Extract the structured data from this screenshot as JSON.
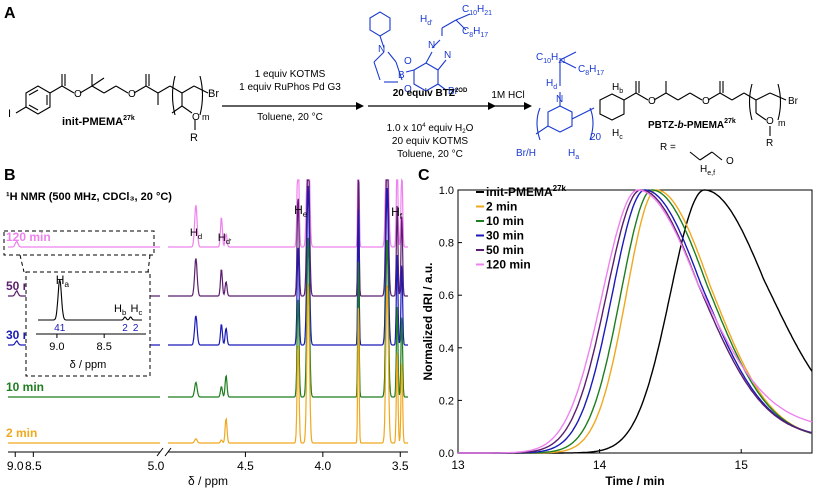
{
  "panels": {
    "A": "A",
    "B": "B",
    "C": "C"
  },
  "scheme": {
    "reactant_label": "init-PMEMA",
    "reactant_sup": "27k",
    "reactant_sub_m": "m",
    "reactant_R": "R",
    "reactant_Br": "Br",
    "reactant_I": "I",
    "step1_line1": "1 equiv KOTMS",
    "step1_line2": "1 equiv RuPhos Pd G3",
    "step1_line3": "Toluene, 20 °C",
    "step2_line1": "20 equiv BTZ",
    "step2_sup": "2OD",
    "step2_line2": "1.0 x 10",
    "step2_line2_sup": "4",
    "step2_line2_end": " equiv H",
    "step2_line2_sub": "2",
    "step2_line2_tail": "O",
    "step2_line3": "20 equiv KOTMS",
    "step2_line4": "Toluene, 20 °C",
    "step3": "1M HCl",
    "bpin_B": "B",
    "bpin_O": "O",
    "bpin_N": "N",
    "monomer_Br": "Br",
    "monomer_Hd": "H",
    "monomer_Hd_sub": "d'",
    "monomer_C10": "C",
    "monomer_C10_sub": "10",
    "monomer_C10_tail": "H",
    "monomer_C10_tail_sub": "21",
    "monomer_C8": "C",
    "monomer_C8_sub": "8",
    "monomer_C8_tail": "H",
    "monomer_C8_tail_sub": "17",
    "product_label": "PBTZ-",
    "product_b": "b",
    "product_tail": "-PMEMA",
    "product_sup": "27k",
    "product_R_eq": "R =",
    "product_Hef": "H",
    "product_Hef_sub": "e,f",
    "product_20": "20",
    "product_BrH": "Br/H",
    "product_Ha": "H",
    "product_Ha_sub": "a",
    "product_Hb": "H",
    "product_Hb_sub": "b",
    "product_Hc": "H",
    "product_Hc_sub": "c",
    "product_Hd": "H",
    "product_Hd_sub": "d",
    "product_m": "m",
    "product_R": "R",
    "product_Br": "Br",
    "product_O": "O"
  },
  "nmr": {
    "title": "¹H NMR (500 MHz, CDCl₃, 20 °C)",
    "xlabel": "δ / ppm",
    "ticks_left": [
      "9.0",
      "8.5",
      "5.0"
    ],
    "ticks_right": [
      "4.5",
      "4.0",
      "3.5"
    ],
    "traces": [
      {
        "label": "120 min",
        "color": "#ee82ee"
      },
      {
        "label": "50 min",
        "color": "#5b1e6e"
      },
      {
        "label": "30 min",
        "color": "#1a1ab8"
      },
      {
        "label": "10 min",
        "color": "#1e7d1e"
      },
      {
        "label": "2 min",
        "color": "#f0a81e"
      }
    ],
    "peaks": {
      "Hd": "H",
      "Hd_sub": "d",
      "Hdp": "H",
      "Hdp_sub": "d'",
      "He": "H",
      "He_sub": "e",
      "Hf": "H",
      "Hf_sub": "f"
    },
    "inset": {
      "Ha": "H",
      "Ha_sub": "a",
      "Hb": "H",
      "Hb_sub": "b",
      "Hc": "H",
      "Hc_sub": "c",
      "int_a": "41",
      "int_b": "2",
      "int_c": "2",
      "ticks": [
        "9.0",
        "8.5"
      ],
      "xlabel": "δ / ppm"
    }
  },
  "chart_data": {
    "type": "line",
    "xlabel": "Time / min",
    "ylabel": "Normalized dRI / a.u.",
    "xlim": [
      13,
      15.5
    ],
    "ylim": [
      0,
      1.0
    ],
    "xticks": [
      "13",
      "14",
      "15"
    ],
    "yticks": [
      "0.0",
      "0.2",
      "0.4",
      "0.6",
      "0.8",
      "1.0"
    ],
    "legend_position": "top-left",
    "series": [
      {
        "name": "init-PMEMA",
        "name_sup": "27k",
        "color": "#000000",
        "peak": 14.74,
        "sigL": 0.24,
        "sigR": 0.46,
        "tail": 0.12
      },
      {
        "name": "2 min",
        "color": "#f0a81e",
        "peak": 14.4,
        "sigL": 0.21,
        "sigR": 0.4,
        "tail": 0.08
      },
      {
        "name": "10 min",
        "color": "#1e7d1e",
        "peak": 14.37,
        "sigL": 0.22,
        "sigR": 0.41,
        "tail": 0.08
      },
      {
        "name": "30 min",
        "color": "#1a1ab8",
        "peak": 14.32,
        "sigL": 0.23,
        "sigR": 0.42,
        "tail": 0.09
      },
      {
        "name": "50 min",
        "color": "#5b1e6e",
        "peak": 14.29,
        "sigL": 0.24,
        "sigR": 0.43,
        "tail": 0.09
      },
      {
        "name": "120 min",
        "color": "#ee82ee",
        "peak": 14.27,
        "sigL": 0.25,
        "sigR": 0.45,
        "tail": 0.15
      }
    ]
  }
}
